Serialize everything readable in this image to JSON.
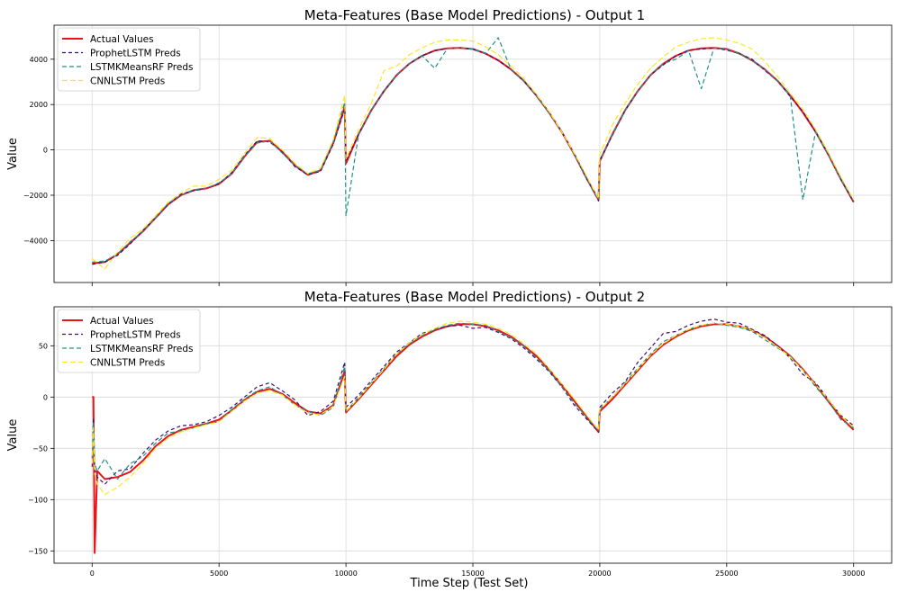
{
  "figure": {
    "xlabel": "Time Step (Test Set)"
  },
  "chart_data": [
    {
      "type": "line",
      "title": "Meta-Features (Base Model Predictions) - Output 1",
      "xlabel": "",
      "ylabel": "Value",
      "xlim": [
        -1500,
        31500
      ],
      "ylim": [
        -5850,
        5500
      ],
      "xticks": [
        0,
        5000,
        10000,
        15000,
        20000,
        25000,
        30000
      ],
      "xtick_labels_shown": false,
      "yticks": [
        -4000,
        -2000,
        0,
        2000,
        4000
      ],
      "ytick_labels": [
        "−4000",
        "−2000",
        "0",
        "2000",
        "4000"
      ],
      "grid": true,
      "legend_position": "upper left",
      "x": [
        0,
        500,
        1000,
        1500,
        2000,
        2500,
        3000,
        3500,
        4000,
        4500,
        5000,
        5500,
        6000,
        6500,
        7000,
        7500,
        8000,
        8500,
        9000,
        9500,
        9950,
        10000,
        10500,
        11000,
        11500,
        12000,
        12500,
        13000,
        13500,
        14000,
        14500,
        15000,
        15500,
        16000,
        16500,
        17000,
        17500,
        18000,
        18500,
        19000,
        19500,
        19950,
        20000,
        20500,
        21000,
        21500,
        22000,
        22500,
        23000,
        23500,
        24000,
        24500,
        25000,
        25500,
        26000,
        26500,
        27000,
        27500,
        28000,
        28500,
        29000,
        29500,
        30000
      ],
      "series": [
        {
          "name": "Actual Values",
          "color": "#e8141a",
          "dash": "solid",
          "width": 2,
          "values": [
            -5000,
            -4950,
            -4600,
            -4100,
            -3600,
            -3000,
            -2400,
            -2000,
            -1780,
            -1700,
            -1500,
            -1050,
            -300,
            350,
            400,
            -100,
            -700,
            -1100,
            -900,
            300,
            1900,
            -600,
            700,
            1750,
            2600,
            3300,
            3800,
            4150,
            4380,
            4480,
            4500,
            4450,
            4250,
            3950,
            3550,
            3050,
            2400,
            1650,
            800,
            -200,
            -1300,
            -2200,
            -500,
            700,
            1750,
            2600,
            3300,
            3800,
            4150,
            4380,
            4480,
            4500,
            4450,
            4250,
            3950,
            3550,
            3050,
            2400,
            1650,
            800,
            -200,
            -1300,
            -2300
          ]
        },
        {
          "name": "ProphetLSTM Preds",
          "color": "#3b0f70",
          "dash": "4,3",
          "width": 1.2,
          "values": [
            -5050,
            -4950,
            -4650,
            -4150,
            -3550,
            -3000,
            -2400,
            -1950,
            -1800,
            -1700,
            -1500,
            -1000,
            -250,
            400,
            350,
            -100,
            -750,
            -1100,
            -950,
            250,
            1800,
            -500,
            700,
            1750,
            2600,
            3300,
            3800,
            4150,
            4380,
            4480,
            4500,
            4450,
            4250,
            3950,
            3550,
            3050,
            2400,
            1650,
            800,
            -200,
            -1300,
            -2250,
            -450,
            650,
            1750,
            2600,
            3300,
            3750,
            4150,
            4400,
            4450,
            4500,
            4400,
            4250,
            4000,
            3500,
            3050,
            2350,
            1700,
            800,
            -200,
            -1300,
            -2300
          ]
        },
        {
          "name": "LSTMKMeansRF Preds",
          "color": "#21918c",
          "dash": "5,3",
          "width": 1.2,
          "values": [
            -4950,
            -4900,
            -4600,
            -4050,
            -3600,
            -3000,
            -2350,
            -2000,
            -1750,
            -1700,
            -1450,
            -1050,
            -300,
            300,
            400,
            -150,
            -700,
            -1050,
            -900,
            350,
            2100,
            -2900,
            700,
            1750,
            2600,
            3300,
            3800,
            4150,
            3600,
            4480,
            4500,
            4450,
            4250,
            4950,
            3550,
            3050,
            2400,
            1650,
            800,
            -200,
            -1300,
            -2200,
            -500,
            700,
            1750,
            2600,
            3300,
            3800,
            4000,
            4380,
            2700,
            4500,
            4450,
            4250,
            3950,
            3550,
            3050,
            2400,
            -2200,
            800,
            -200,
            -1300,
            -2250
          ]
        },
        {
          "name": "CNNLSTM Preds",
          "color": "#fde725",
          "dash": "6,3",
          "width": 1.2,
          "values": [
            -4800,
            -5250,
            -4500,
            -3900,
            -3500,
            -2900,
            -2300,
            -1900,
            -1600,
            -1600,
            -1300,
            -900,
            -150,
            550,
            500,
            0,
            -600,
            -1050,
            -800,
            450,
            2400,
            -400,
            900,
            2050,
            3500,
            3700,
            4200,
            4500,
            4750,
            4850,
            4850,
            4800,
            4550,
            4200,
            3700,
            3150,
            2450,
            1700,
            800,
            -150,
            -1200,
            -2150,
            -200,
            1100,
            2050,
            2900,
            3600,
            4100,
            4550,
            4750,
            4900,
            4950,
            4850,
            4700,
            4450,
            3900,
            3250,
            2500,
            1800,
            900,
            -100,
            -1200,
            -2200
          ]
        }
      ]
    },
    {
      "type": "line",
      "title": "Meta-Features (Base Model Predictions) - Output 2",
      "xlabel": "",
      "ylabel": "Value",
      "xlim": [
        -1500,
        31500
      ],
      "ylim": [
        -162,
        88
      ],
      "xticks": [
        0,
        5000,
        10000,
        15000,
        20000,
        25000,
        30000
      ],
      "xtick_labels_shown": true,
      "xtick_labels": [
        "0",
        "5000",
        "10000",
        "15000",
        "20000",
        "25000",
        "30000"
      ],
      "yticks": [
        -150,
        -100,
        -50,
        0,
        50
      ],
      "ytick_labels": [
        "−150",
        "−100",
        "−50",
        "0",
        "50"
      ],
      "grid": true,
      "legend_position": "upper left",
      "x": [
        0,
        50,
        100,
        200,
        500,
        1000,
        1500,
        2000,
        2500,
        3000,
        3500,
        4000,
        4500,
        5000,
        5500,
        6000,
        6500,
        7000,
        7500,
        8000,
        8500,
        9000,
        9500,
        9950,
        10000,
        10500,
        11000,
        11500,
        12000,
        12500,
        13000,
        13500,
        14000,
        14500,
        15000,
        15500,
        16000,
        16500,
        17000,
        17500,
        18000,
        18500,
        19000,
        19500,
        19950,
        20000,
        20500,
        21000,
        21500,
        22000,
        22500,
        23000,
        23500,
        24000,
        24500,
        25000,
        25500,
        26000,
        26500,
        27000,
        27500,
        28000,
        28500,
        29000,
        29500,
        30000
      ],
      "series": [
        {
          "name": "Actual Values",
          "color": "#e8141a",
          "dash": "solid",
          "width": 2,
          "values": [
            0,
            0,
            -152,
            -72,
            -80,
            -78,
            -73,
            -62,
            -48,
            -38,
            -32,
            -29,
            -26,
            -22,
            -13,
            -3,
            5,
            8,
            3,
            -6,
            -14,
            -16,
            -8,
            25,
            -15,
            -2,
            12,
            26,
            40,
            51,
            59,
            65,
            69,
            71,
            71,
            69,
            65,
            59,
            50,
            40,
            27,
            12,
            -4,
            -20,
            -34,
            -14,
            -2,
            12,
            26,
            40,
            51,
            59,
            65,
            69,
            71,
            71,
            69,
            65,
            59,
            50,
            40,
            27,
            12,
            -4,
            -20,
            -32
          ]
        },
        {
          "name": "ProphetLSTM Preds",
          "color": "#3b0f70",
          "dash": "4,3",
          "width": 1.2,
          "values": [
            -68,
            -20,
            -70,
            -78,
            -85,
            -72,
            -70,
            -55,
            -42,
            -33,
            -28,
            -27,
            -24,
            -18,
            -10,
            0,
            10,
            14,
            6,
            -3,
            -18,
            -14,
            -4,
            34,
            -10,
            2,
            16,
            30,
            44,
            53,
            62,
            66,
            69,
            70,
            67,
            68,
            63,
            57,
            48,
            37,
            25,
            10,
            -8,
            -22,
            -34,
            -10,
            4,
            15,
            34,
            48,
            62,
            64,
            70,
            74,
            76,
            73,
            72,
            66,
            60,
            50,
            38,
            22,
            14,
            -2,
            -18,
            -28
          ]
        },
        {
          "name": "LSTMKMeansRF Preds",
          "color": "#21918c",
          "dash": "5,3",
          "width": 1.2,
          "values": [
            -60,
            -25,
            -65,
            -72,
            -60,
            -80,
            -65,
            -58,
            -45,
            -35,
            -33,
            -30,
            -26,
            -24,
            -12,
            -2,
            6,
            10,
            2,
            -8,
            -14,
            -18,
            -10,
            30,
            -14,
            0,
            14,
            28,
            42,
            52,
            60,
            66,
            70,
            72,
            71,
            70,
            64,
            58,
            50,
            38,
            26,
            10,
            -6,
            -20,
            -33,
            -12,
            0,
            14,
            28,
            42,
            54,
            60,
            66,
            70,
            72,
            70,
            68,
            64,
            56,
            48,
            40,
            26,
            10,
            -4,
            -22,
            -30
          ]
        },
        {
          "name": "CNNLSTM Preds",
          "color": "#fde725",
          "dash": "6,3",
          "width": 1.2,
          "values": [
            -65,
            -30,
            -75,
            -85,
            -95,
            -88,
            -78,
            -65,
            -50,
            -40,
            -34,
            -30,
            -27,
            -24,
            -14,
            -4,
            4,
            6,
            2,
            -8,
            -16,
            -17,
            -9,
            20,
            -14,
            -1,
            13,
            27,
            42,
            53,
            61,
            67,
            72,
            74,
            73,
            71,
            67,
            61,
            52,
            42,
            28,
            13,
            -2,
            -18,
            -32,
            -12,
            0,
            13,
            27,
            41,
            52,
            60,
            66,
            70,
            72,
            71,
            69,
            65,
            58,
            49,
            39,
            26,
            12,
            -2,
            -18,
            -30
          ]
        }
      ]
    }
  ]
}
